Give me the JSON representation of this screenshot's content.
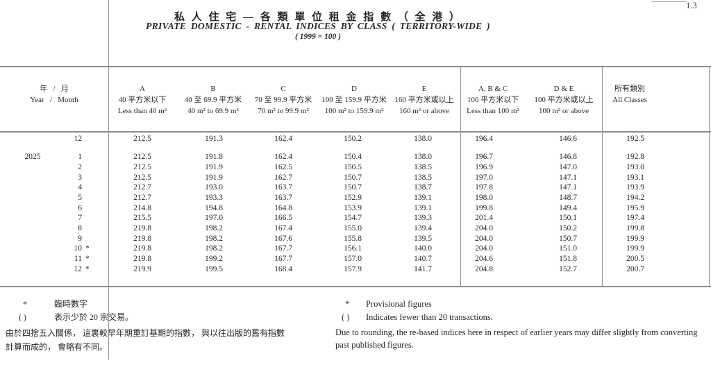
{
  "page": {
    "number": "1.3"
  },
  "title": {
    "chinese": "私 人 住 宅  —  各 類 單 位 租 金 指 數  （ 全 港 ）",
    "english": "PRIVATE  DOMESTIC  -  RENTAL  INDICES  BY  CLASS  ( TERRITORY-WIDE )",
    "base": "( 1999 = 100 )"
  },
  "table": {
    "corner": {
      "line1": "年   /   月",
      "line2": "Year   /   Month"
    },
    "columns": [
      {
        "line1": "A",
        "line2": "40 平方米以下",
        "line3": "Less than 40 m²"
      },
      {
        "line1": "B",
        "line2": "40 至 69.9 平方米",
        "line3": "40 m² to 69.9 m²"
      },
      {
        "line1": "C",
        "line2": "70 至 99.9 平方米",
        "line3": "70 m² to 99.9 m²"
      },
      {
        "line1": "D",
        "line2": "100 至 159.9 平方米",
        "line3": "100 m² to 159.9 m²"
      },
      {
        "line1": "E",
        "line2": "160 平方米或以上",
        "line3": "160 m² or above"
      },
      {
        "line1": "A, B & C",
        "line2": "100 平方米以下",
        "line3": "Less than 100 m²"
      },
      {
        "line1": "D & E",
        "line2": "100  平方米或以上",
        "line3": "100 m² or above"
      },
      {
        "line1": "所有類別",
        "line2": "All Classes",
        "line3": ""
      }
    ],
    "provisional_mark": "*",
    "rows": [
      {
        "year": "",
        "month": "12",
        "provisional": false,
        "values": [
          "212.5",
          "191.3",
          "162.4",
          "150.2",
          "138.0",
          "196.4",
          "146.6",
          "192.5"
        ]
      },
      {
        "year": "2025",
        "month": "1",
        "provisional": false,
        "values": [
          "212.5",
          "191.8",
          "162.4",
          "150.4",
          "138.0",
          "196.7",
          "146.8",
          "192.8"
        ]
      },
      {
        "year": "",
        "month": "2",
        "provisional": false,
        "values": [
          "212.5",
          "191.9",
          "162.5",
          "150.5",
          "138.5",
          "196.9",
          "147.0",
          "193.0"
        ]
      },
      {
        "year": "",
        "month": "3",
        "provisional": false,
        "values": [
          "212.5",
          "191.9",
          "162.7",
          "150.7",
          "138.5",
          "197.0",
          "147.1",
          "193.1"
        ]
      },
      {
        "year": "",
        "month": "4",
        "provisional": false,
        "values": [
          "212.7",
          "193.0",
          "163.7",
          "150.7",
          "138.7",
          "197.8",
          "147.1",
          "193.9"
        ]
      },
      {
        "year": "",
        "month": "5",
        "provisional": false,
        "values": [
          "212.7",
          "193.3",
          "163.7",
          "152.9",
          "139.1",
          "198.0",
          "148.7",
          "194.2"
        ]
      },
      {
        "year": "",
        "month": "6",
        "provisional": false,
        "values": [
          "214.8",
          "194.8",
          "164.8",
          "153.9",
          "139.1",
          "199.8",
          "149.4",
          "195.9"
        ]
      },
      {
        "year": "",
        "month": "7",
        "provisional": false,
        "values": [
          "215.5",
          "197.0",
          "166.5",
          "154.7",
          "139.3",
          "201.4",
          "150.1",
          "197.4"
        ]
      },
      {
        "year": "",
        "month": "8",
        "provisional": false,
        "values": [
          "219.8",
          "198.2",
          "167.4",
          "155.0",
          "139.4",
          "204.0",
          "150.2",
          "199.8"
        ]
      },
      {
        "year": "",
        "month": "9",
        "provisional": false,
        "values": [
          "219.8",
          "198.2",
          "167.6",
          "155.8",
          "139.5",
          "204.0",
          "150.7",
          "199.9"
        ]
      },
      {
        "year": "",
        "month": "10",
        "provisional": true,
        "values": [
          "219.8",
          "198.2",
          "167.7",
          "156.1",
          "140.0",
          "204.0",
          "151.0",
          "199.9"
        ]
      },
      {
        "year": "",
        "month": "11",
        "provisional": true,
        "values": [
          "219.8",
          "199.2",
          "167.7",
          "157.0",
          "140.7",
          "204.6",
          "151.8",
          "200.5"
        ]
      },
      {
        "year": "",
        "month": "12",
        "provisional": true,
        "values": [
          "219.9",
          "199.5",
          "168.4",
          "157.9",
          "141.7",
          "204.8",
          "152.7",
          "200.7"
        ]
      }
    ]
  },
  "footnotes": {
    "chinese": {
      "provisional_symbol": "*",
      "provisional": "臨時數字",
      "brackets_symbol": "( )",
      "brackets": "表示少於 20 宗交易。",
      "note_line1": "由於四捨五入關係， 這裏較早年期重訂基期的指數， 與以往出版的舊有指數",
      "note_line2": "計算而成的， 會略有不同。"
    },
    "english": {
      "provisional_symbol": "*",
      "provisional": "Provisional figures",
      "brackets_symbol": "( )",
      "brackets": "Indicates fewer than 20 transactions.",
      "note_line1": "Due to rounding, the re-based indices here in respect of earlier years may differ slightly from converting",
      "note_line2": "past published figures."
    }
  }
}
